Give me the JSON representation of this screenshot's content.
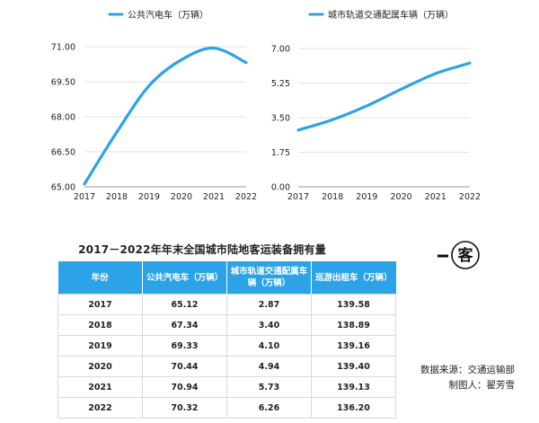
{
  "chart_data": [
    {
      "type": "line",
      "legend": "公共汽电车（万辆）",
      "categories": [
        "2017",
        "2018",
        "2019",
        "2020",
        "2021",
        "2022"
      ],
      "values": [
        65.12,
        67.34,
        69.33,
        70.44,
        70.94,
        70.32
      ],
      "yticks": [
        "71.00",
        "69.50",
        "68.00",
        "66.50",
        "65.00"
      ],
      "ylim": [
        65.0,
        71.0
      ],
      "color": "#2ba3e6"
    },
    {
      "type": "line",
      "legend": "城市轨道交通配属车辆（万辆）",
      "categories": [
        "2017",
        "2018",
        "2019",
        "2020",
        "2021",
        "2022"
      ],
      "values": [
        2.87,
        3.4,
        4.1,
        4.94,
        5.73,
        6.26
      ],
      "yticks": [
        "7.00",
        "5.25",
        "3.50",
        "1.75",
        "0.00"
      ],
      "ylim": [
        0.0,
        7.0
      ],
      "color": "#2ba3e6"
    }
  ],
  "table": {
    "title": "2017－2022年年末全国城市陆地客运装备拥有量",
    "headers": [
      "年份",
      "公共汽电车（万辆）",
      "城市轨道交通配属车辆（万辆）",
      "巡游出租车（万辆）"
    ],
    "rows": [
      [
        "2017",
        "65.12",
        "2.87",
        "139.58"
      ],
      [
        "2018",
        "67.34",
        "3.40",
        "138.89"
      ],
      [
        "2019",
        "69.33",
        "4.10",
        "139.16"
      ],
      [
        "2020",
        "70.44",
        "4.94",
        "139.40"
      ],
      [
        "2021",
        "70.94",
        "5.73",
        "139.13"
      ],
      [
        "2022",
        "70.32",
        "6.26",
        "136.20"
      ]
    ]
  },
  "logo": {
    "text": "客"
  },
  "footer": {
    "source": "数据来源：交通运输部",
    "author": "制图人：翟芳雪"
  },
  "colors": {
    "accent": "#2ba3e6",
    "grid": "#e3e3e3"
  }
}
